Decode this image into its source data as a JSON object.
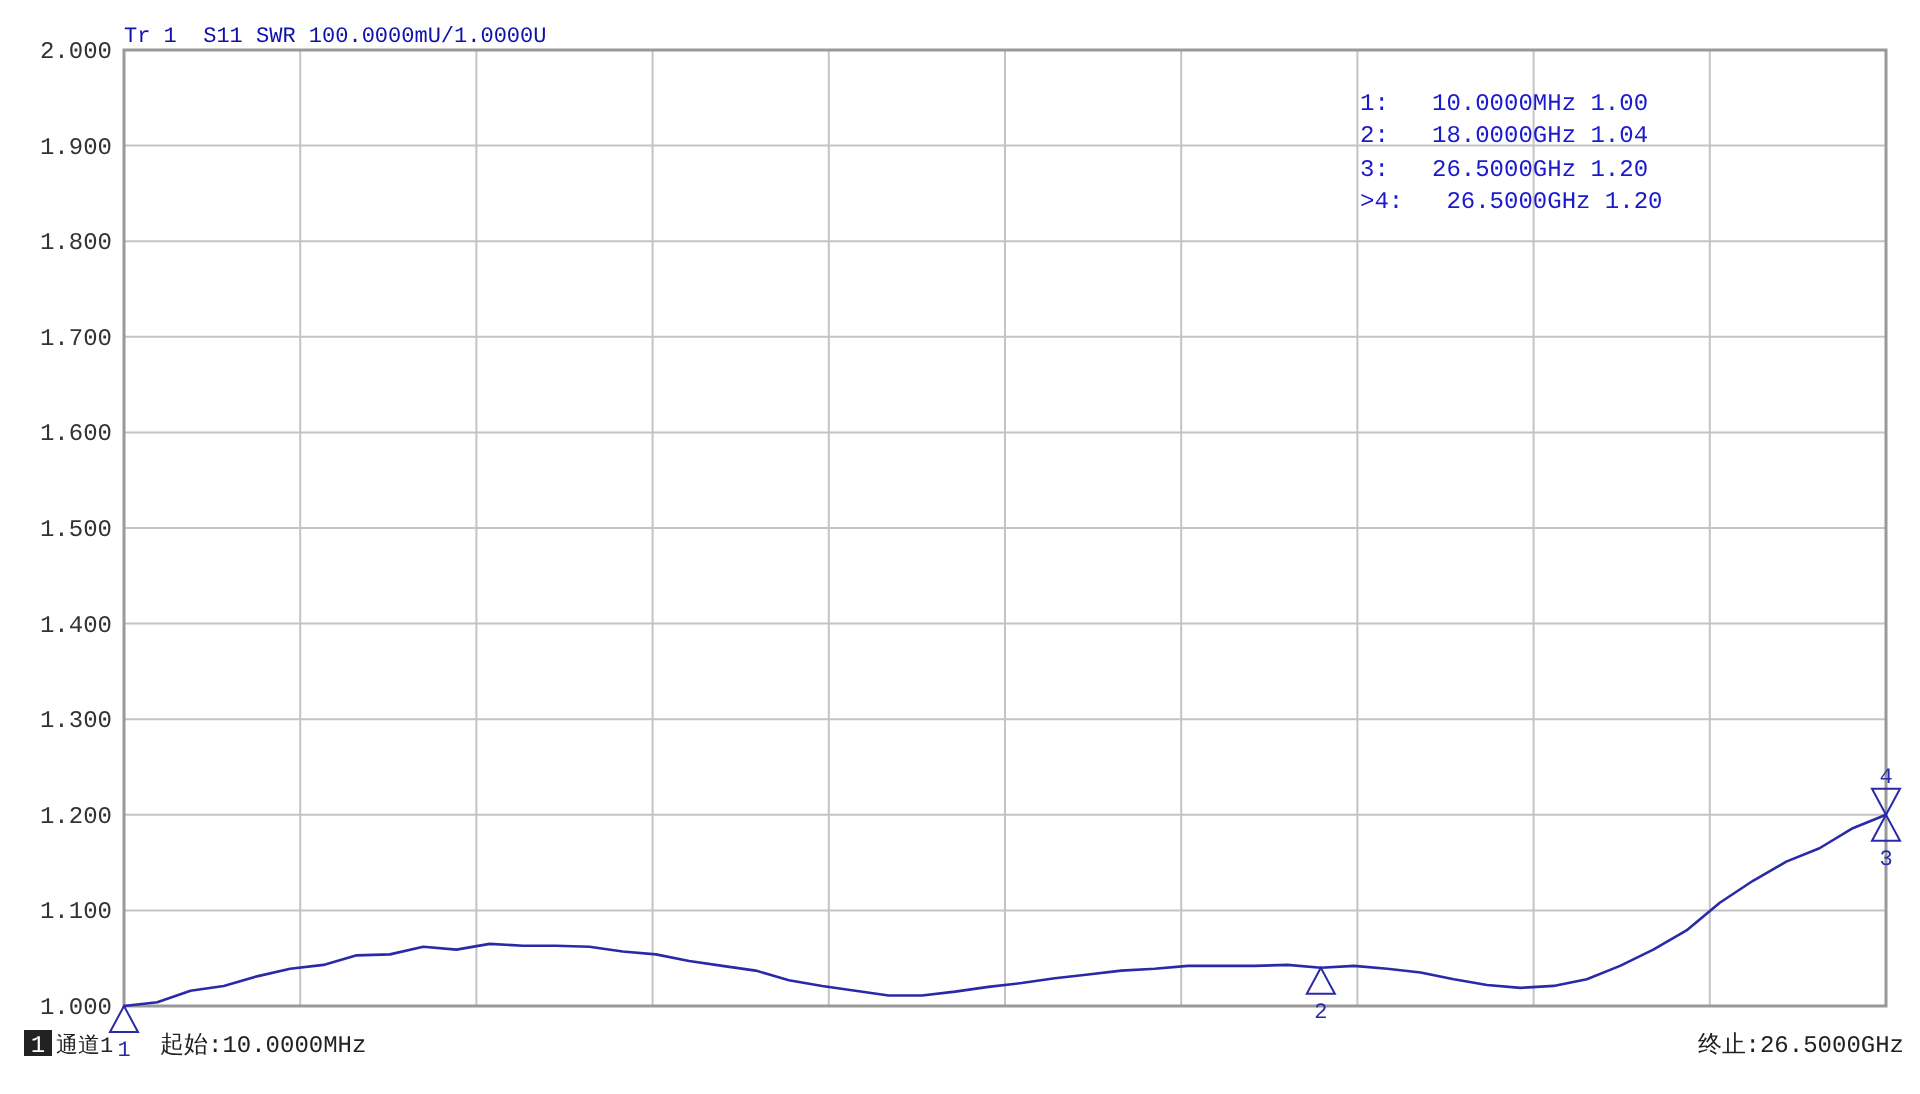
{
  "chart_data": {
    "type": "line",
    "title": "Tr 1  S11 SWR 100.0000mU/1.0000U",
    "annotations": [
      "1:   10.0000MHz 1.00",
      "2:   18.0000GHz 1.04",
      "3:   26.5000GHz 1.20",
      ">4:   26.5000GHz 1.20",
      "1",
      "通道1",
      "起始:10.0000MHz",
      "终止:26.5000GHz",
      "1",
      {
        "text": "2",
        "y": 1.04
      },
      {
        "text": "3",
        "y": 1.2
      },
      {
        "text": "4",
        "y": 1.2
      }
    ],
    "categories": [
      null,
      null,
      null,
      null,
      null,
      null,
      null,
      null,
      null,
      null,
      null,
      null,
      null,
      null,
      null,
      null,
      null,
      null,
      null,
      null,
      null,
      null,
      null,
      null,
      null,
      null,
      null,
      null,
      null,
      null,
      null,
      null,
      null,
      null,
      null,
      null,
      null,
      null,
      null,
      null,
      null,
      null,
      null,
      null,
      null,
      null,
      null,
      null,
      null,
      null,
      null,
      null,
      null,
      null
    ],
    "series": [
      {
        "color": "#2a2aa8",
        "values": [
          1.0,
          1.004,
          1.016,
          1.021,
          1.031,
          1.039,
          1.043,
          1.053,
          1.054,
          1.062,
          1.059,
          1.065,
          1.063,
          1.063,
          1.062,
          1.057,
          1.054,
          1.047,
          1.042,
          1.037,
          1.027,
          1.021,
          1.016,
          1.011,
          1.011,
          1.015,
          1.02,
          1.024,
          1.029,
          1.033,
          1.037,
          1.039,
          1.042,
          1.042,
          1.042,
          1.043,
          1.04,
          1.042,
          1.039,
          1.035,
          1.028,
          1.022,
          1.019,
          1.021,
          1.028,
          1.042,
          1.059,
          1.079,
          1.108,
          1.131,
          1.151,
          1.165,
          1.186,
          1.2
        ]
      }
    ],
    "ylim": [
      1.0,
      2.0
    ],
    "yticks": [
      {
        "value": 1.0,
        "label": "1.000"
      },
      {
        "value": 1.1,
        "label": "1.100"
      },
      {
        "value": 1.2,
        "label": "1.200"
      },
      {
        "value": 1.3,
        "label": "1.300"
      },
      {
        "value": 1.4,
        "label": "1.400"
      },
      {
        "value": 1.5,
        "label": "1.500"
      },
      {
        "value": 1.6,
        "label": "1.600"
      },
      {
        "value": 1.7,
        "label": "1.700"
      },
      {
        "value": 1.8,
        "label": "1.800"
      },
      {
        "value": 1.9,
        "label": "1.900"
      },
      {
        "value": 2.0,
        "label": "2.000"
      }
    ],
    "grid": true,
    "tick_labels": "y",
    "line_style": "solid"
  }
}
